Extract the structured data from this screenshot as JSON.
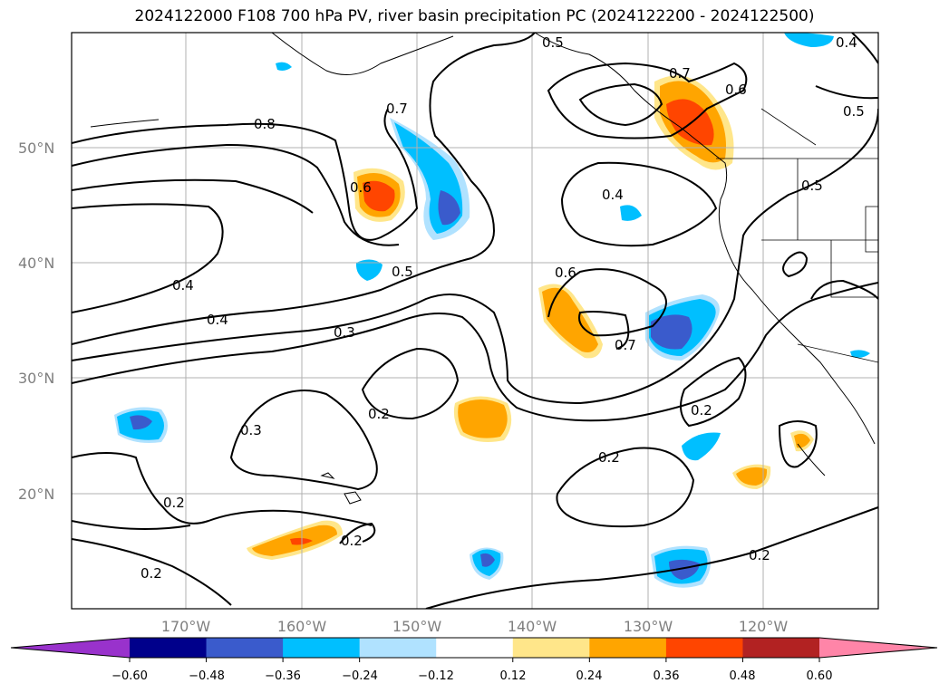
{
  "title": "2024122000 F108 700 hPa PV, river basin precipitation PC (2024122200 - 2024122500)",
  "map": {
    "lat_labels": [
      "50°N",
      "40°N",
      "30°N",
      "20°N"
    ],
    "lon_labels": [
      "170°W",
      "160°W",
      "150°W",
      "140°W",
      "130°W",
      "120°W"
    ],
    "contour_labels": [
      "0.8",
      "0.7",
      "0.6",
      "0.5",
      "0.4",
      "0.3",
      "0.2"
    ],
    "gridlines": true
  },
  "colorbar": {
    "ticks": [
      "−0.60",
      "−0.48",
      "−0.36",
      "−0.24",
      "−0.12",
      "0.12",
      "0.24",
      "0.36",
      "0.48",
      "0.60"
    ],
    "colors": [
      "#9932cc",
      "#00008b",
      "#3a5bcc",
      "#00bfff",
      "#b0e2ff",
      "#ffffff",
      "#ffe68a",
      "#ffa500",
      "#ff4500",
      "#b22222",
      "#ff85a8"
    ],
    "extend": "both"
  },
  "colors": {
    "neg_strong": "#3a5bcc",
    "neg_mid": "#00bfff",
    "neg_weak": "#b0e2ff",
    "pos_weak": "#ffe68a",
    "pos_mid": "#ffa500",
    "pos_strong": "#ff4500",
    "grid": "#b0b0b0"
  }
}
